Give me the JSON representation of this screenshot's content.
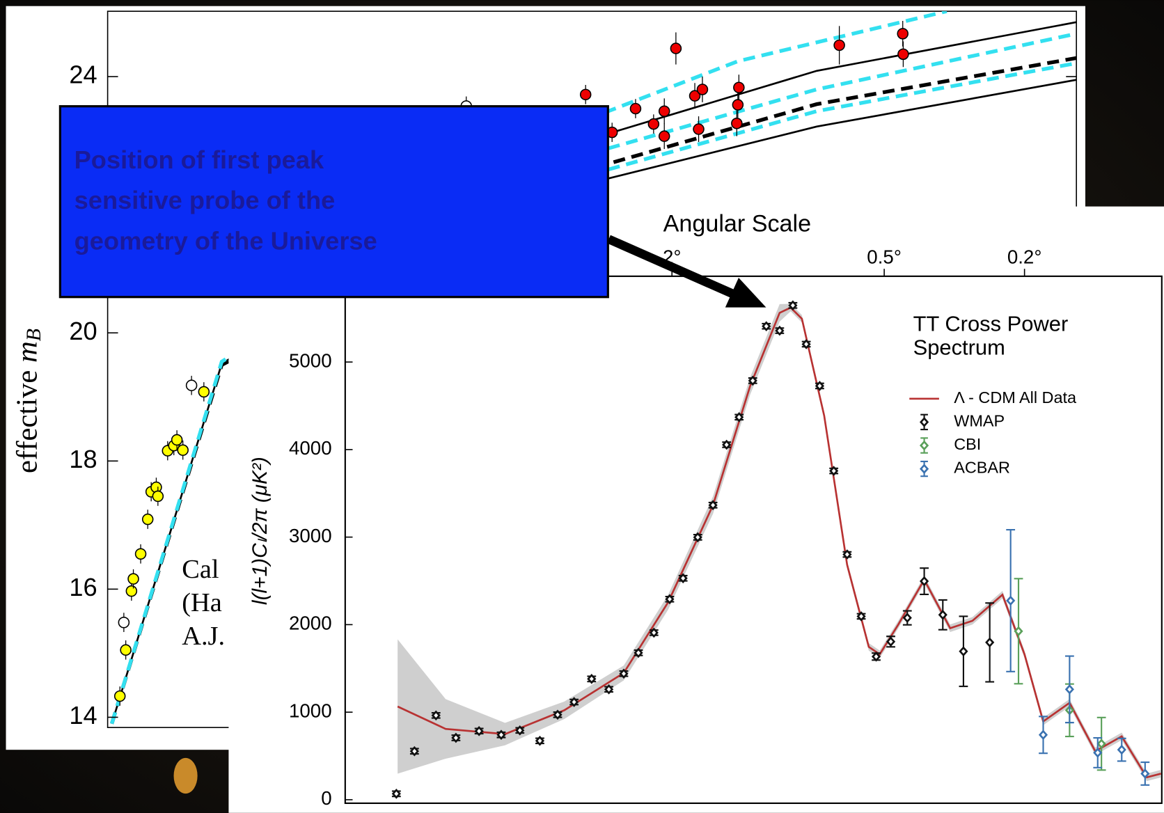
{
  "chart_data": [
    {
      "type": "scatter",
      "xscale": "log",
      "xlim": [
        0.01,
        1.0
      ],
      "ylim": [
        13.84,
        25.02
      ],
      "yticks": [
        14,
        16,
        18,
        20,
        24
      ],
      "ylabel": {
        "text": "effective",
        "symbol": "m",
        "subscript": "B"
      },
      "annotation": [
        "Cal",
        "(Ha",
        "A.J."
      ],
      "series": [
        {
          "kind": "line",
          "color": "#000000",
          "dash": false,
          "x": [
            0.0102,
            0.0172,
            0.108,
            0.291,
            1.0
          ],
          "values": [
            13.9,
            19.52,
            23.11,
            24.09,
            24.85
          ]
        },
        {
          "kind": "line",
          "color": "#000000",
          "dash": true,
          "x": [
            0.0102,
            0.0172,
            0.108,
            0.291,
            1.0
          ],
          "values": [
            13.9,
            19.5,
            22.64,
            23.57,
            24.29
          ]
        },
        {
          "kind": "line",
          "color": "#000000",
          "dash": false,
          "x": [
            0.108,
            0.291,
            1.0
          ],
          "values": [
            22.41,
            23.22,
            23.95
          ]
        },
        {
          "kind": "line",
          "color": "#33e0f0",
          "dash": true,
          "x": [
            0.0102,
            0.0172,
            0.108,
            0.2,
            0.54
          ],
          "values": [
            13.9,
            19.55,
            23.46,
            24.24,
            25.02
          ]
        },
        {
          "kind": "line",
          "color": "#33e0f0",
          "dash": true,
          "x": [
            0.108,
            0.291,
            1.0
          ],
          "values": [
            22.88,
            23.8,
            24.67
          ]
        },
        {
          "kind": "line",
          "color": "#33e0f0",
          "dash": true,
          "x": [
            0.108,
            0.291,
            1.0
          ],
          "values": [
            22.55,
            23.46,
            24.21
          ]
        },
        {
          "kind": "points",
          "color": "#ffff00",
          "x": [
            0.0106,
            0.0109,
            0.0112,
            0.0113,
            0.0117,
            0.0121,
            0.0123,
            0.0126,
            0.0127,
            0.0133,
            0.0137,
            0.0139,
            0.0143,
            0.0158
          ],
          "values": [
            14.33,
            15.05,
            15.97,
            16.16,
            16.55,
            17.09,
            17.52,
            17.59,
            17.45,
            18.16,
            18.24,
            18.33,
            18.17,
            19.08
          ],
          "errors": [
            0.15,
            0.15,
            0.15,
            0.15,
            0.15,
            0.15,
            0.15,
            0.15,
            0.15,
            0.15,
            0.15,
            0.15,
            0.15,
            0.15
          ]
        },
        {
          "kind": "points",
          "color": "#ffffff",
          "x": [
            0.0108,
            0.0149,
            0.055
          ],
          "values": [
            15.48,
            19.18,
            23.54
          ],
          "errors": [
            0.15,
            0.15,
            0.15
          ]
        },
        {
          "kind": "points",
          "color": "#ee0000",
          "x": [
            0.097,
            0.11,
            0.123,
            0.134,
            0.141,
            0.141,
            0.149,
            0.163,
            0.166,
            0.169,
            0.199,
            0.2,
            0.201,
            0.324,
            0.438,
            0.439
          ],
          "values": [
            23.72,
            23.13,
            23.5,
            23.26,
            23.46,
            23.07,
            24.44,
            23.7,
            23.18,
            23.8,
            23.27,
            23.56,
            23.83,
            24.49,
            24.67,
            24.35
          ],
          "errors": [
            0.15,
            0.15,
            0.15,
            0.15,
            0.2,
            0.2,
            0.25,
            0.2,
            0.2,
            0.2,
            0.2,
            0.2,
            0.2,
            0.3,
            0.2,
            0.2
          ]
        }
      ]
    },
    {
      "type": "scatter",
      "xscale": "log",
      "xlim": [
        16.9,
        0.0816
      ],
      "ylim": [
        -40,
        5980
      ],
      "yticks": [
        0,
        1000,
        2000,
        3000,
        4000,
        5000
      ],
      "xticks": [
        {
          "value": 2,
          "label": "2°"
        },
        {
          "value": 0.5,
          "label": "0.5°"
        },
        {
          "value": 0.2,
          "label": "0.2°"
        }
      ],
      "xlabel": "Angular Scale",
      "ylabel": "l(l+1)Cₗ/2π (μK²)",
      "legend_title": [
        "TT Cross Power",
        "Spectrum"
      ],
      "annotation": [
        "Position of first peak",
        "sensitive probe of the",
        "geometry of the Universe"
      ],
      "series": [
        {
          "name": "Λ - CDM All Data",
          "kind": "line",
          "color": "#b83232",
          "x": [
            12.0,
            8.77,
            5.95,
            4.04,
            2.74,
            2.05,
            1.53,
            1.2,
            0.99,
            0.921,
            0.856,
            0.74,
            0.637,
            0.553,
            0.515,
            0.456,
            0.385,
            0.325,
            0.281,
            0.231,
            0.2,
            0.177,
            0.149,
            0.126,
            0.106,
            0.09,
            0.082
          ],
          "values": [
            1065,
            809,
            750,
            1022,
            1448,
            2257,
            3365,
            4727,
            5562,
            5622,
            5494,
            4387,
            2683,
            1746,
            1661,
            2002,
            2513,
            1959,
            2044,
            2342,
            1661,
            894,
            1107,
            554,
            724,
            256,
            298
          ],
          "errors": [
            767,
            340,
            128,
            100,
            85,
            85,
            100,
            100,
            100,
            43,
            43,
            43,
            43,
            43,
            43,
            43,
            43,
            43,
            43,
            43,
            43,
            43,
            43,
            43,
            43,
            43,
            43
          ]
        },
        {
          "name": "WMAP",
          "kind": "points",
          "color": "#111111",
          "x": [
            12.1,
            10.75,
            9.34,
            8.2,
            7.05,
            6.1,
            5.4,
            4.74,
            4.22,
            3.79,
            3.38,
            3.02,
            2.74,
            2.49,
            2.25,
            2.03,
            1.86,
            1.69,
            1.53,
            1.4,
            1.29,
            1.18,
            1.08,
            0.99,
            0.908,
            0.832,
            0.762,
            0.695,
            0.637,
            0.581,
            0.527,
            0.479,
            0.43,
            0.385,
            0.341,
            0.298,
            0.251
          ],
          "values": [
            68,
            554,
            963,
            707,
            784,
            741,
            792,
            673,
            971,
            1116,
            1380,
            1261,
            1440,
            1678,
            1908,
            2291,
            2530,
            2998,
            3365,
            4055,
            4370,
            4787,
            5409,
            5358,
            5647,
            5204,
            4727,
            3756,
            2802,
            2095,
            1635,
            1806,
            2078,
            2496,
            2112,
            1695,
            1797
          ],
          "errors": [
            30,
            30,
            30,
            30,
            30,
            30,
            30,
            30,
            30,
            30,
            30,
            30,
            30,
            30,
            30,
            30,
            30,
            30,
            30,
            30,
            30,
            30,
            30,
            30,
            30,
            30,
            30,
            30,
            30,
            30,
            40,
            60,
            80,
            150,
            170,
            400,
            450
          ]
        },
        {
          "name": "CBI",
          "kind": "points",
          "color": "#5aa05a",
          "x": [
            0.208,
            0.149,
            0.121
          ],
          "values": [
            1925,
            1022,
            639
          ],
          "errors": [
            600,
            300,
            300
          ]
        },
        {
          "name": "ACBAR",
          "kind": "points",
          "color": "#3a72b0",
          "x": [
            0.219,
            0.177,
            0.149,
            0.124,
            0.106,
            0.091
          ],
          "values": [
            2274,
            741,
            1261,
            537,
            571,
            298
          ],
          "errors": [
            810,
            210,
            380,
            170,
            130,
            130
          ]
        }
      ]
    }
  ]
}
